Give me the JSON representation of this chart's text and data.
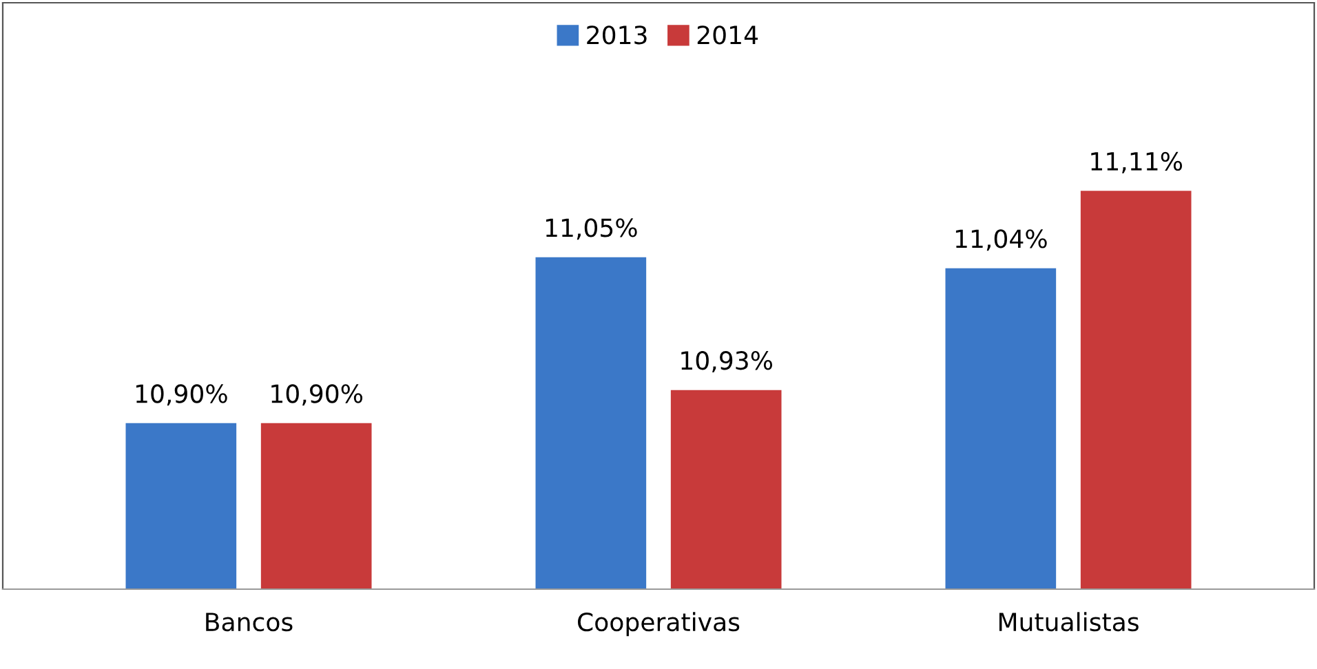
{
  "chart_data": {
    "type": "bar",
    "categories": [
      "Bancos",
      "Cooperativas",
      "Mutualistas"
    ],
    "series": [
      {
        "name": "2013",
        "color": "#3b78c8",
        "values": [
          10.9,
          11.05,
          11.04
        ],
        "value_labels": [
          "10,90%",
          "11,05%",
          "11,04%"
        ]
      },
      {
        "name": "2014",
        "color": "#c83a3a",
        "values": [
          10.9,
          10.93,
          11.11
        ],
        "value_labels": [
          "10,90%",
          "10,93%",
          "11,11%"
        ]
      }
    ],
    "ylim": [
      10.75,
      11.28
    ],
    "legend": "top",
    "grid": false
  }
}
